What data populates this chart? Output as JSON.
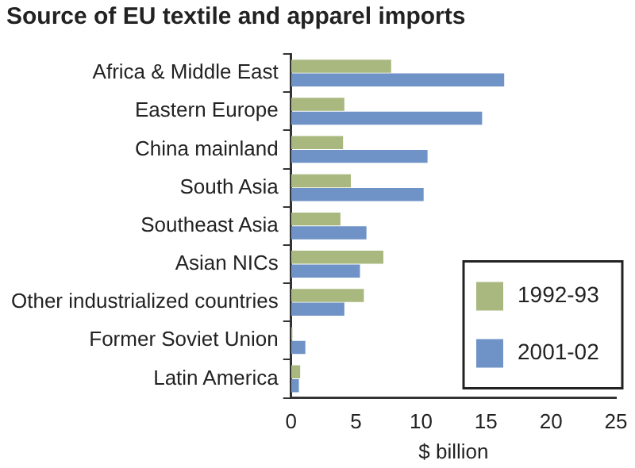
{
  "chart_data": {
    "type": "bar",
    "orientation": "horizontal",
    "title": "Source of EU textile and apparel imports",
    "xlabel": "$ billion",
    "categories": [
      "Africa & Middle East",
      "Eastern Europe",
      "China mainland",
      "South Asia",
      "Southeast Asia",
      "Asian NICs",
      "Other industrialized countries",
      "Former Soviet Union",
      "Latin America"
    ],
    "series": [
      {
        "name": "1992-93",
        "color": "#a9b87f",
        "values": [
          7.7,
          4.1,
          4.0,
          4.6,
          3.8,
          7.1,
          5.6,
          0.1,
          0.7
        ]
      },
      {
        "name": "2001-02",
        "color": "#6f93c6",
        "values": [
          16.4,
          14.7,
          10.5,
          10.2,
          5.8,
          5.3,
          4.1,
          1.1,
          0.6
        ]
      }
    ],
    "xlim": [
      0,
      25
    ],
    "xticks": [
      0,
      5,
      10,
      15,
      20,
      25
    ],
    "grid": false,
    "legend": "bottom right"
  }
}
